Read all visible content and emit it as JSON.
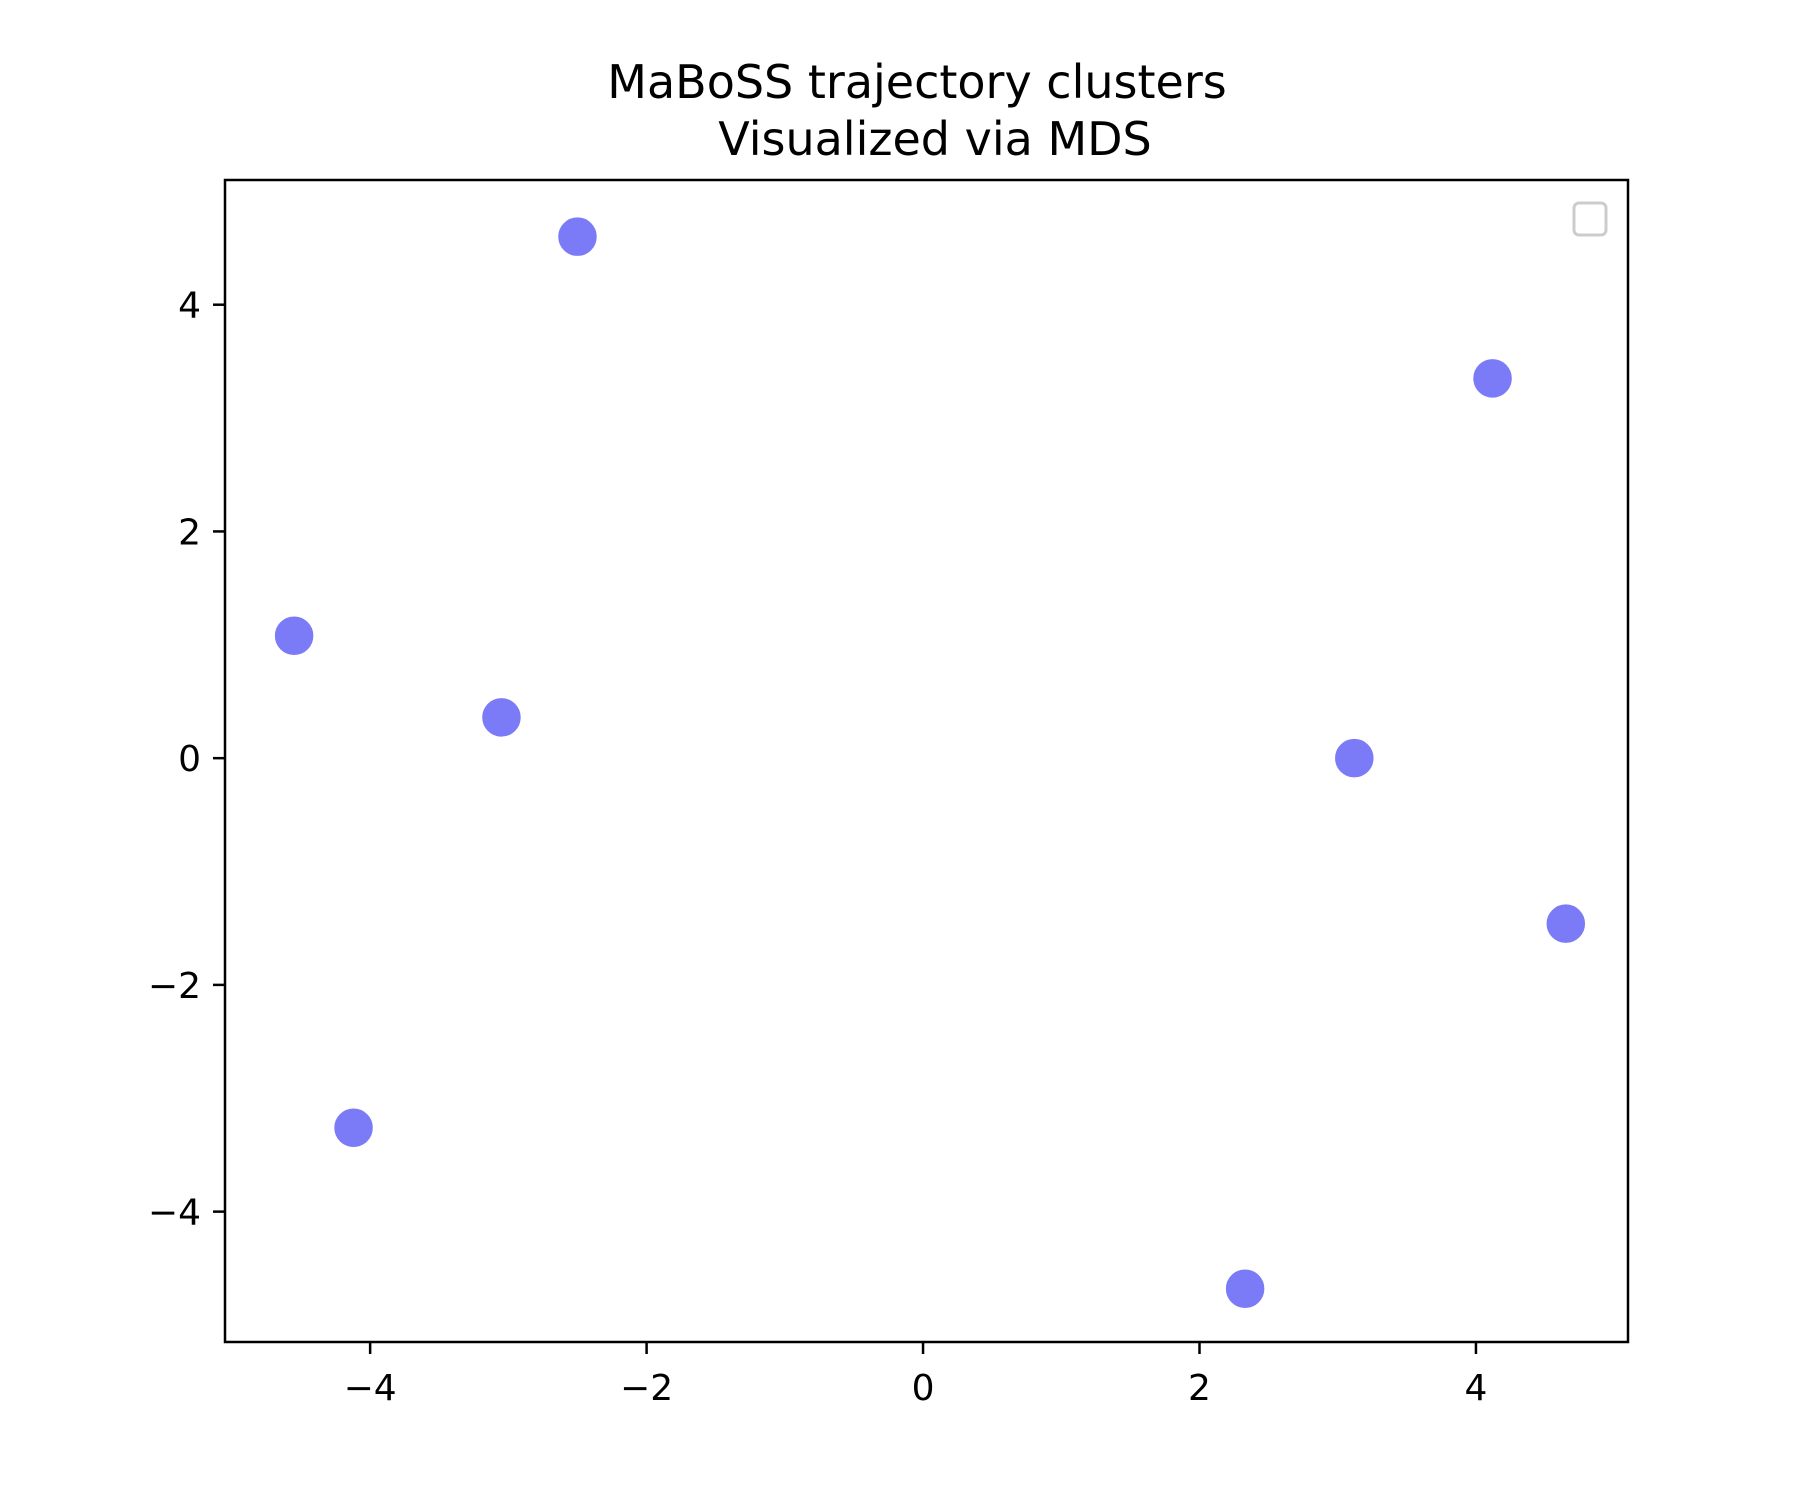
{
  "chart_data": {
    "type": "scatter",
    "title": "MaBoSS trajectory clusters",
    "subtitle": "Visualized via MDS",
    "xlabel": "",
    "ylabel": "",
    "xlim": [
      -5.05,
      5.1
    ],
    "ylim": [
      -5.15,
      5.1
    ],
    "xticks": [
      -4,
      -2,
      0,
      2,
      4
    ],
    "yticks": [
      -4,
      -2,
      0,
      2,
      4
    ],
    "xtick_labels": [
      "−4",
      "−2",
      "0",
      "2",
      "4"
    ],
    "ytick_labels": [
      "−4",
      "−2",
      "0",
      "2",
      "4"
    ],
    "grid": false,
    "legend": {
      "placement": "top-right",
      "entries": []
    },
    "marker_color": "#7b7bf7",
    "points": [
      {
        "x": -2.5,
        "y": 4.6
      },
      {
        "x": 4.12,
        "y": 3.35
      },
      {
        "x": -4.55,
        "y": 1.08
      },
      {
        "x": -3.05,
        "y": 0.36
      },
      {
        "x": 3.12,
        "y": 0.0
      },
      {
        "x": 4.65,
        "y": -1.46
      },
      {
        "x": -4.12,
        "y": -3.26
      },
      {
        "x": 2.33,
        "y": -4.68
      }
    ]
  }
}
